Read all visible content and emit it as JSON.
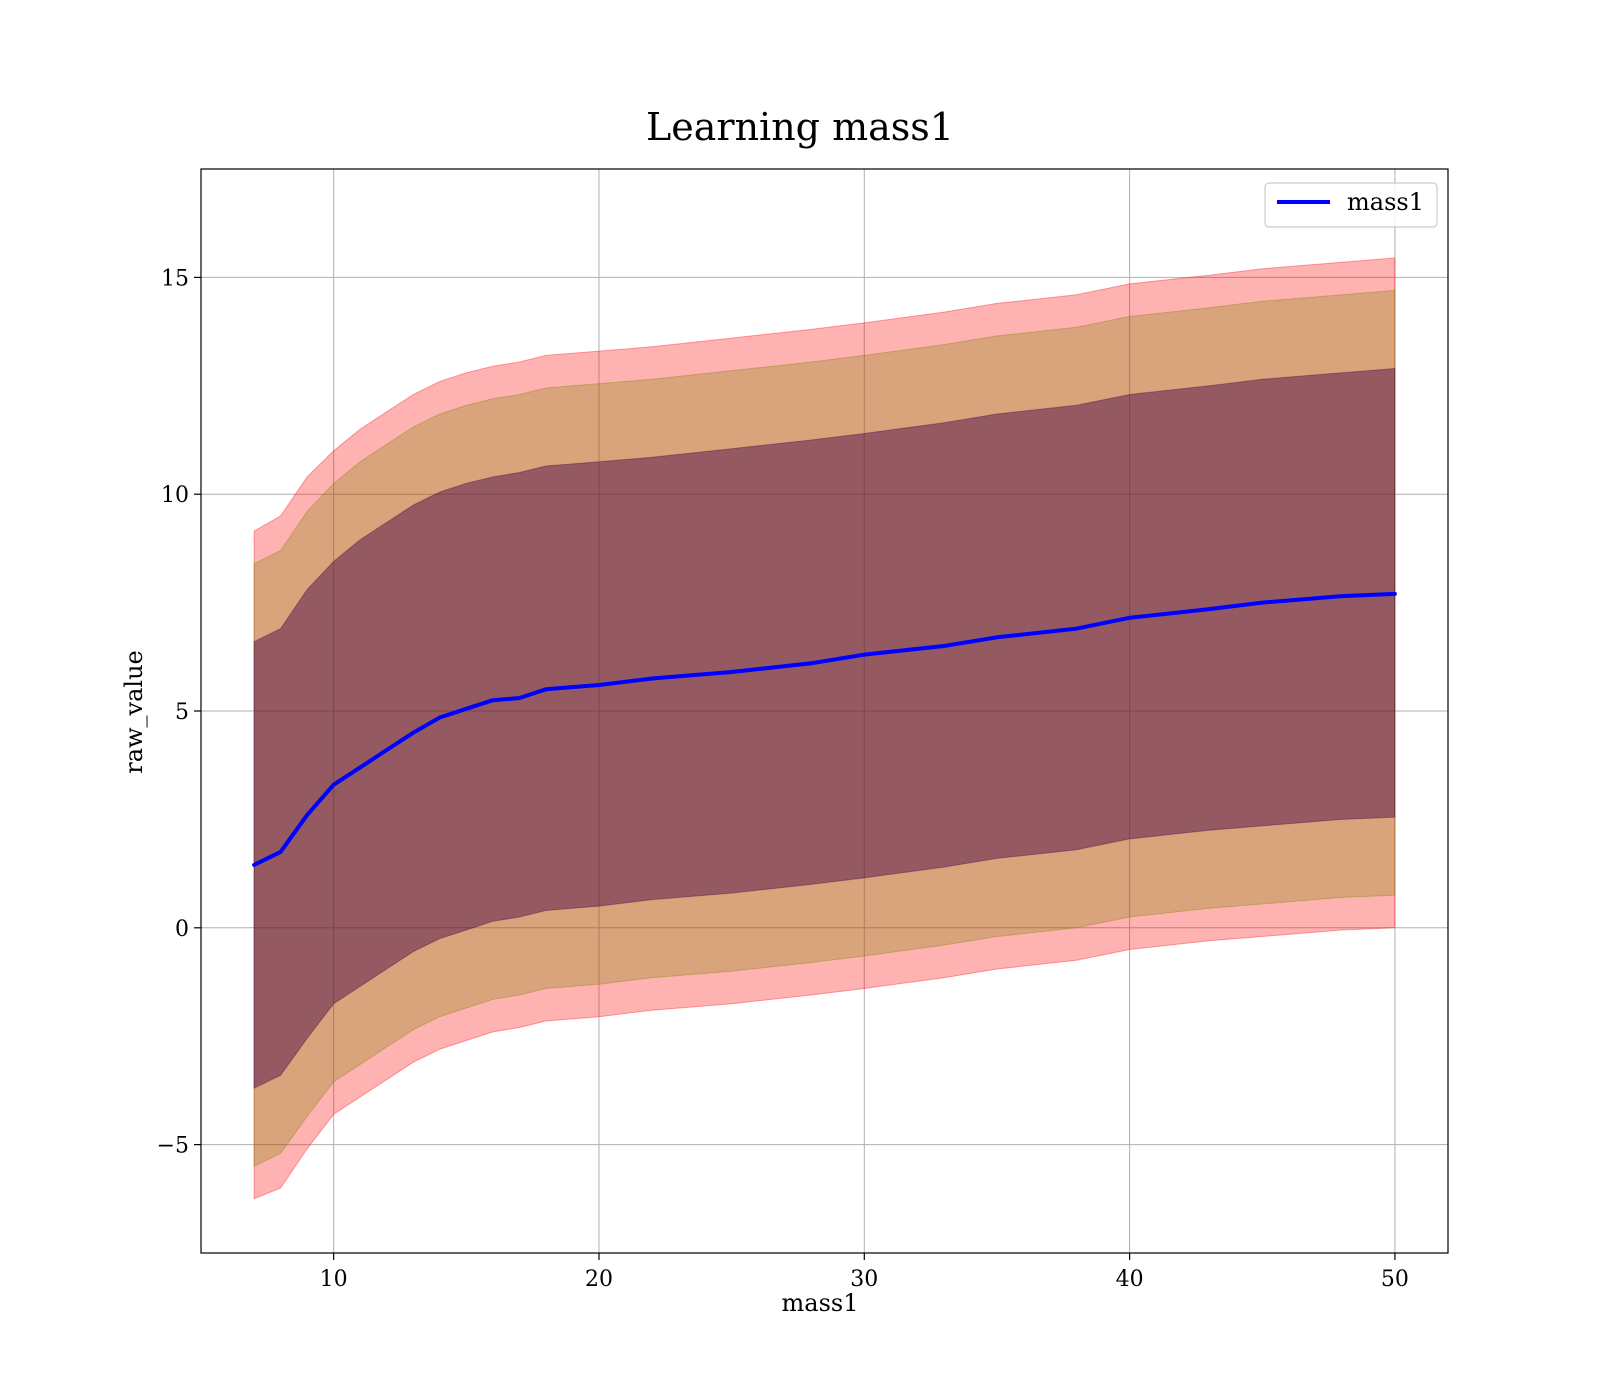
{
  "chart_data": {
    "type": "area",
    "title": "Learning mass1",
    "xlabel": "mass1",
    "ylabel": "raw_value",
    "xlim": [
      5,
      52
    ],
    "ylim": [
      -7.5,
      17.5
    ],
    "xticks": [
      10,
      20,
      30,
      40,
      50
    ],
    "xtick_labels": [
      "10",
      "20",
      "30",
      "40",
      "50"
    ],
    "yticks": [
      -5,
      0,
      5,
      10,
      15
    ],
    "ytick_labels": [
      "−5",
      "0",
      "5",
      "10",
      "15"
    ],
    "grid": true,
    "legend": {
      "placement": "top-right",
      "entries": [
        "mass1"
      ]
    },
    "x": [
      7,
      8,
      9,
      10,
      11,
      12,
      13,
      14,
      15,
      16,
      17,
      18,
      20,
      22,
      25,
      28,
      30,
      33,
      35,
      38,
      40,
      43,
      45,
      48,
      50
    ],
    "series": [
      {
        "name": "mass1",
        "color": "#0000ff",
        "values": [
          1.45,
          1.75,
          2.6,
          3.3,
          3.7,
          4.1,
          4.5,
          4.85,
          5.05,
          5.25,
          5.3,
          5.5,
          5.6,
          5.75,
          5.9,
          6.1,
          6.3,
          6.5,
          6.7,
          6.9,
          7.15,
          7.35,
          7.5,
          7.65,
          7.7
        ]
      }
    ],
    "bands": [
      {
        "label": "",
        "color": "#ff0000",
        "opacity": 0.3,
        "upper": [
          9.15,
          9.5,
          10.4,
          11.0,
          11.5,
          11.9,
          12.3,
          12.6,
          12.8,
          12.95,
          13.05,
          13.2,
          13.3,
          13.4,
          13.6,
          13.8,
          13.95,
          14.2,
          14.4,
          14.6,
          14.85,
          15.05,
          15.2,
          15.35,
          15.45
        ],
        "lower": [
          -6.25,
          -6.0,
          -5.1,
          -4.3,
          -3.9,
          -3.5,
          -3.1,
          -2.8,
          -2.6,
          -2.4,
          -2.3,
          -2.15,
          -2.05,
          -1.9,
          -1.75,
          -1.55,
          -1.4,
          -1.15,
          -0.95,
          -0.75,
          -0.5,
          -0.3,
          -0.2,
          -0.05,
          0.0
        ]
      },
      {
        "label": "",
        "color": "#808000",
        "opacity": 0.3,
        "upper": [
          8.4,
          8.7,
          9.6,
          10.25,
          10.75,
          11.15,
          11.55,
          11.85,
          12.05,
          12.2,
          12.3,
          12.45,
          12.55,
          12.65,
          12.85,
          13.05,
          13.2,
          13.45,
          13.65,
          13.85,
          14.1,
          14.3,
          14.45,
          14.6,
          14.7
        ],
        "lower": [
          -5.5,
          -5.2,
          -4.35,
          -3.55,
          -3.15,
          -2.75,
          -2.35,
          -2.05,
          -1.85,
          -1.65,
          -1.55,
          -1.4,
          -1.3,
          -1.15,
          -1.0,
          -0.8,
          -0.65,
          -0.4,
          -0.2,
          0.0,
          0.25,
          0.45,
          0.55,
          0.7,
          0.75
        ]
      },
      {
        "label": "",
        "color": "#400040",
        "opacity": 0.45,
        "upper": [
          6.6,
          6.9,
          7.8,
          8.45,
          8.95,
          9.35,
          9.75,
          10.05,
          10.25,
          10.4,
          10.5,
          10.65,
          10.75,
          10.85,
          11.05,
          11.25,
          11.4,
          11.65,
          11.85,
          12.05,
          12.3,
          12.5,
          12.65,
          12.8,
          12.9
        ],
        "lower": [
          -3.7,
          -3.4,
          -2.55,
          -1.75,
          -1.35,
          -0.95,
          -0.55,
          -0.25,
          -0.05,
          0.15,
          0.25,
          0.4,
          0.5,
          0.65,
          0.8,
          1.0,
          1.15,
          1.4,
          1.6,
          1.8,
          2.05,
          2.25,
          2.35,
          2.5,
          2.55
        ]
      }
    ]
  }
}
